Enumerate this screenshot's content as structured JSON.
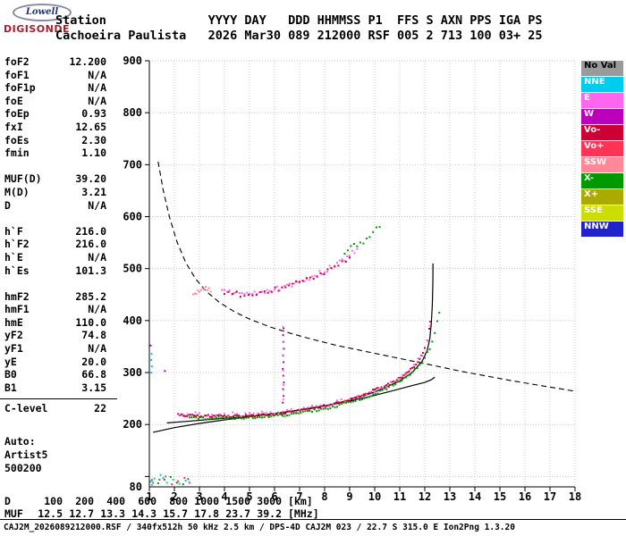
{
  "logo": {
    "line1": "Lowell",
    "line2": "DIGISONDE"
  },
  "header": {
    "line1": "Station              YYYY DAY   DDD HHMMSS P1  FFS S AXN PPS IGA PS",
    "line2": "Cachoeira Paulista   2026 Mar30 089 212000 RSF 005 2 713 100 03+ 25"
  },
  "params": {
    "groups": [
      [
        {
          "label": "foF2",
          "value": "12.200"
        },
        {
          "label": "foF1",
          "value": "N/A"
        },
        {
          "label": "foF1p",
          "value": "N/A"
        },
        {
          "label": "foE",
          "value": "N/A"
        },
        {
          "label": "foEp",
          "value": "0.93"
        },
        {
          "label": "fxI",
          "value": "12.65"
        },
        {
          "label": "foEs",
          "value": "2.30"
        },
        {
          "label": "fmin",
          "value": "1.10"
        }
      ],
      [
        {
          "label": "MUF(D)",
          "value": "39.20"
        },
        {
          "label": "M(D)",
          "value": "3.21"
        },
        {
          "label": "D",
          "value": "N/A"
        }
      ],
      [
        {
          "label": "h`F",
          "value": "216.0"
        },
        {
          "label": "h`F2",
          "value": "216.0"
        },
        {
          "label": "h`E",
          "value": "N/A"
        },
        {
          "label": "h`Es",
          "value": "101.3"
        }
      ],
      [
        {
          "label": "hmF2",
          "value": "285.2"
        },
        {
          "label": "hmF1",
          "value": "N/A"
        },
        {
          "label": "hmE",
          "value": "110.0"
        },
        {
          "label": "yF2",
          "value": "74.8"
        },
        {
          "label": "yF1",
          "value": "N/A"
        },
        {
          "label": "yE",
          "value": "20.0"
        },
        {
          "label": "B0",
          "value": "66.8"
        },
        {
          "label": "B1",
          "value": "3.15"
        }
      ]
    ],
    "clevel": {
      "label": "C-level",
      "value": "22"
    },
    "auto_lines": [
      "Auto:",
      "Artist5",
      "500200"
    ]
  },
  "legend": {
    "items": [
      {
        "label": "No Val",
        "bg": "#9A9A9A",
        "fg": "#000000"
      },
      {
        "label": "NNE",
        "bg": "#00CCEE",
        "fg": "#FFFFFF"
      },
      {
        "label": "E",
        "bg": "#FF66EE",
        "fg": "#FFFFFF"
      },
      {
        "label": "W",
        "bg": "#BB00BB",
        "fg": "#FFFFFF"
      },
      {
        "label": "Vo-",
        "bg": "#CC0033",
        "fg": "#FFFFFF"
      },
      {
        "label": "Vo+",
        "bg": "#FF3355",
        "fg": "#FFFFFF"
      },
      {
        "label": "SSW",
        "bg": "#FF8899",
        "fg": "#FFFFFF"
      },
      {
        "label": "X-",
        "bg": "#009900",
        "fg": "#FFFFFF"
      },
      {
        "label": "X+",
        "bg": "#AAAA00",
        "fg": "#FFFFFF"
      },
      {
        "label": "SSE",
        "bg": "#CCDD00",
        "fg": "#FFFFFF"
      },
      {
        "label": "NNW",
        "bg": "#2222CC",
        "fg": "#FFFFFF"
      }
    ]
  },
  "chart_data": {
    "type": "scatter",
    "x_axis": {
      "quantity": "frequency",
      "min": 1,
      "max": 18,
      "ticks": [
        1,
        2,
        3,
        4,
        5,
        6,
        7,
        8,
        9,
        10,
        11,
        12,
        13,
        14,
        15,
        16,
        17,
        18
      ]
    },
    "y_axis": {
      "quantity": "virtual height",
      "min": 80,
      "max": 900,
      "grid_step": 100,
      "tick_labels": [
        900,
        800,
        700,
        600,
        500,
        400,
        300,
        200,
        80
      ]
    },
    "grid": true,
    "series": [
      {
        "name": "transmission-curve",
        "color": "#000000",
        "mode": "dash",
        "width": 1.1,
        "points": [
          [
            1.35,
            706
          ],
          [
            1.55,
            652
          ],
          [
            1.8,
            600
          ],
          [
            2.1,
            552
          ],
          [
            2.45,
            512
          ],
          [
            2.85,
            480
          ],
          [
            3.3,
            455
          ],
          [
            3.8,
            435
          ],
          [
            4.4,
            417
          ],
          [
            5,
            403
          ],
          [
            5.8,
            388
          ],
          [
            6.6,
            376
          ],
          [
            7.5,
            364
          ],
          [
            8.5,
            352
          ],
          [
            9.5,
            342
          ],
          [
            10.5,
            332
          ],
          [
            11.5,
            322
          ],
          [
            12.5,
            312
          ],
          [
            13.5,
            302
          ],
          [
            14.5,
            293
          ],
          [
            15.5,
            284
          ],
          [
            16.5,
            276
          ],
          [
            17.5,
            268
          ],
          [
            18,
            264
          ]
        ]
      },
      {
        "name": "model-o-trace",
        "color": "#000000",
        "mode": "line",
        "width": 1.2,
        "points": [
          [
            1.7,
            203
          ],
          [
            2.5,
            206
          ],
          [
            3.5,
            210
          ],
          [
            4.5,
            214
          ],
          [
            5.5,
            218
          ],
          [
            6.5,
            224
          ],
          [
            7.5,
            231
          ],
          [
            8.5,
            241
          ],
          [
            9.5,
            254
          ],
          [
            10.3,
            268
          ],
          [
            11,
            284
          ],
          [
            11.5,
            300
          ],
          [
            11.9,
            322
          ],
          [
            12.1,
            343
          ],
          [
            12.2,
            365
          ],
          [
            12.26,
            395
          ],
          [
            12.3,
            430
          ],
          [
            12.32,
            470
          ],
          [
            12.33,
            510
          ]
        ]
      },
      {
        "name": "true-height-profile",
        "color": "#000000",
        "mode": "line",
        "width": 1.2,
        "points": [
          [
            1.15,
            185
          ],
          [
            2,
            194
          ],
          [
            3,
            202
          ],
          [
            4,
            209
          ],
          [
            5,
            215
          ],
          [
            6,
            221
          ],
          [
            7,
            228
          ],
          [
            8,
            236
          ],
          [
            9,
            245
          ],
          [
            10,
            256
          ],
          [
            10.8,
            266
          ],
          [
            11.5,
            275
          ],
          [
            12,
            281
          ],
          [
            12.25,
            286
          ],
          [
            12.4,
            291
          ]
        ]
      },
      {
        "name": "f-trace-o",
        "color": "Vo-",
        "mode": "dots",
        "size": 2,
        "step": 0.07,
        "jitter": 2.5,
        "seed": 1,
        "points": [
          [
            2.15,
            219
          ],
          [
            2.5,
            217
          ],
          [
            3,
            216
          ],
          [
            4,
            216
          ],
          [
            5,
            217
          ],
          [
            6,
            220
          ],
          [
            6.8,
            225
          ],
          [
            7.6,
            231
          ],
          [
            8.4,
            240
          ],
          [
            9.2,
            252
          ],
          [
            10,
            266
          ],
          [
            10.6,
            278
          ],
          [
            11.1,
            292
          ],
          [
            11.5,
            308
          ],
          [
            11.8,
            326
          ],
          [
            12,
            345
          ],
          [
            12.1,
            362
          ],
          [
            12.18,
            382
          ],
          [
            12.22,
            398
          ]
        ]
      },
      {
        "name": "f-trace-pink",
        "color": "E",
        "mode": "dots",
        "size": 2,
        "step": 0.17,
        "jitter": 4,
        "seed": 7,
        "points": [
          [
            2.2,
            222
          ],
          [
            3,
            219
          ],
          [
            4,
            219
          ],
          [
            5,
            220
          ],
          [
            6,
            223
          ],
          [
            7,
            228
          ],
          [
            8,
            237
          ],
          [
            9,
            249
          ],
          [
            10,
            264
          ],
          [
            10.8,
            283
          ],
          [
            11.4,
            303
          ],
          [
            11.9,
            335
          ],
          [
            12.1,
            360
          ],
          [
            12.2,
            390
          ]
        ]
      },
      {
        "name": "f-trace-x",
        "color": "X-",
        "mode": "dots",
        "size": 2,
        "step": 0.09,
        "jitter": 2.5,
        "seed": 3,
        "points": [
          [
            2.6,
            212
          ],
          [
            3.5,
            212
          ],
          [
            4.5,
            213
          ],
          [
            5.5,
            215
          ],
          [
            6.5,
            219
          ],
          [
            7.5,
            226
          ],
          [
            8.5,
            236
          ],
          [
            9.5,
            250
          ],
          [
            10.3,
            265
          ],
          [
            11,
            283
          ],
          [
            11.5,
            300
          ],
          [
            11.9,
            320
          ],
          [
            12.2,
            347
          ],
          [
            12.4,
            375
          ],
          [
            12.5,
            398
          ],
          [
            12.58,
            415
          ]
        ]
      },
      {
        "name": "second-hop-pink",
        "color": "E",
        "mode": "dots",
        "size": 2,
        "step": 0.1,
        "jitter": 5,
        "seed": 11,
        "points": [
          [
            3.9,
            457
          ],
          [
            4.5,
            452
          ],
          [
            5.2,
            453
          ],
          [
            5.9,
            458
          ],
          [
            6.5,
            466
          ],
          [
            7.1,
            476
          ],
          [
            7.7,
            489
          ],
          [
            8.3,
            504
          ],
          [
            8.9,
            522
          ],
          [
            9.3,
            538
          ]
        ]
      },
      {
        "name": "second-hop-red",
        "color": "Vo-",
        "mode": "dots",
        "size": 2,
        "step": 0.15,
        "jitter": 5,
        "seed": 13,
        "points": [
          [
            4,
            452
          ],
          [
            4.8,
            450
          ],
          [
            5.6,
            455
          ],
          [
            6.3,
            462
          ],
          [
            7,
            473
          ],
          [
            7.7,
            487
          ],
          [
            8.4,
            503
          ],
          [
            9,
            521
          ]
        ]
      },
      {
        "name": "second-hop-green",
        "color": "X-",
        "mode": "dots",
        "size": 2,
        "step": 0.12,
        "jitter": 6,
        "seed": 17,
        "points": [
          [
            8.8,
            530
          ],
          [
            9.3,
            546
          ],
          [
            9.8,
            562
          ],
          [
            10.2,
            580
          ]
        ]
      },
      {
        "name": "hop-cluster-3mhz",
        "color": "SSW",
        "mode": "dots",
        "size": 2,
        "step": 0.06,
        "jitter": 5,
        "seed": 19,
        "points": [
          [
            2.75,
            452
          ],
          [
            3,
            458
          ],
          [
            3.25,
            462
          ],
          [
            3.45,
            456
          ]
        ]
      },
      {
        "name": "es-cyan",
        "color": "NNE",
        "mode": "dots",
        "size": 2,
        "points": [
          [
            1.05,
            90
          ],
          [
            1.2,
            96
          ],
          [
            1.45,
            103
          ],
          [
            1.7,
            88
          ],
          [
            1.95,
            94
          ],
          [
            2.2,
            86
          ],
          [
            2.45,
            92
          ],
          [
            1.1,
            84
          ],
          [
            1.55,
            97
          ]
        ]
      },
      {
        "name": "es-red",
        "color": "Vo+",
        "mode": "dots",
        "size": 2,
        "points": [
          [
            1.15,
            88
          ],
          [
            1.4,
            94
          ],
          [
            1.65,
            100
          ],
          [
            1.9,
            85
          ],
          [
            2.15,
            91
          ],
          [
            2.4,
            97
          ],
          [
            2.6,
            88
          ]
        ]
      },
      {
        "name": "es-green",
        "color": "X-",
        "mode": "dots",
        "size": 2,
        "points": [
          [
            1.1,
            93
          ],
          [
            1.35,
            87
          ],
          [
            1.6,
            94
          ],
          [
            1.85,
            99
          ],
          [
            2.1,
            88
          ],
          [
            2.35,
            85
          ],
          [
            2.55,
            95
          ]
        ]
      },
      {
        "name": "spread-6mhz-magenta",
        "color": "W",
        "mode": "dots",
        "size": 2,
        "points": [
          [
            6.33,
            242
          ],
          [
            6.36,
            255
          ],
          [
            6.34,
            268
          ],
          [
            6.37,
            281
          ],
          [
            6.35,
            294
          ],
          [
            6.33,
            307
          ],
          [
            6.36,
            320
          ],
          [
            6.34,
            333
          ],
          [
            6.37,
            346
          ],
          [
            6.35,
            359
          ],
          [
            6.34,
            372
          ],
          [
            6.36,
            385
          ]
        ]
      },
      {
        "name": "spread-6mhz-pink",
        "color": "E",
        "mode": "dots",
        "size": 2,
        "points": [
          [
            6.35,
            248
          ],
          [
            6.36,
            276
          ],
          [
            6.34,
            304
          ],
          [
            6.35,
            332
          ],
          [
            6.36,
            360
          ],
          [
            6.34,
            388
          ]
        ]
      },
      {
        "name": "stray-cyan-column",
        "color": "NNE",
        "mode": "dots",
        "size": 2,
        "points": [
          [
            1.08,
            300
          ],
          [
            1.1,
            312
          ],
          [
            1.07,
            324
          ],
          [
            1.09,
            336
          ]
        ]
      },
      {
        "name": "stray-magenta",
        "color": "W",
        "mode": "dots",
        "size": 2,
        "points": [
          [
            1.05,
            352
          ],
          [
            1.62,
            303
          ]
        ]
      }
    ]
  },
  "dm_table": {
    "rows": [
      {
        "label": "D",
        "values": [
          "100",
          "200",
          "400",
          "600",
          "800",
          "1000",
          "1500",
          "3000"
        ],
        "unit": "[km]"
      },
      {
        "label": "MUF",
        "values": [
          "12.5",
          "12.7",
          "13.3",
          "14.3",
          "15.7",
          "17.8",
          "23.7",
          "39.2"
        ],
        "unit": "[MHz]"
      }
    ]
  },
  "footer": {
    "text": "CAJ2M_2026089212000.RSF / 340fx512h 50 kHz 2.5 km / DPS-4D CAJ2M 023 / 22.7 S 315.0 E Ion2Png 1.3.20"
  }
}
